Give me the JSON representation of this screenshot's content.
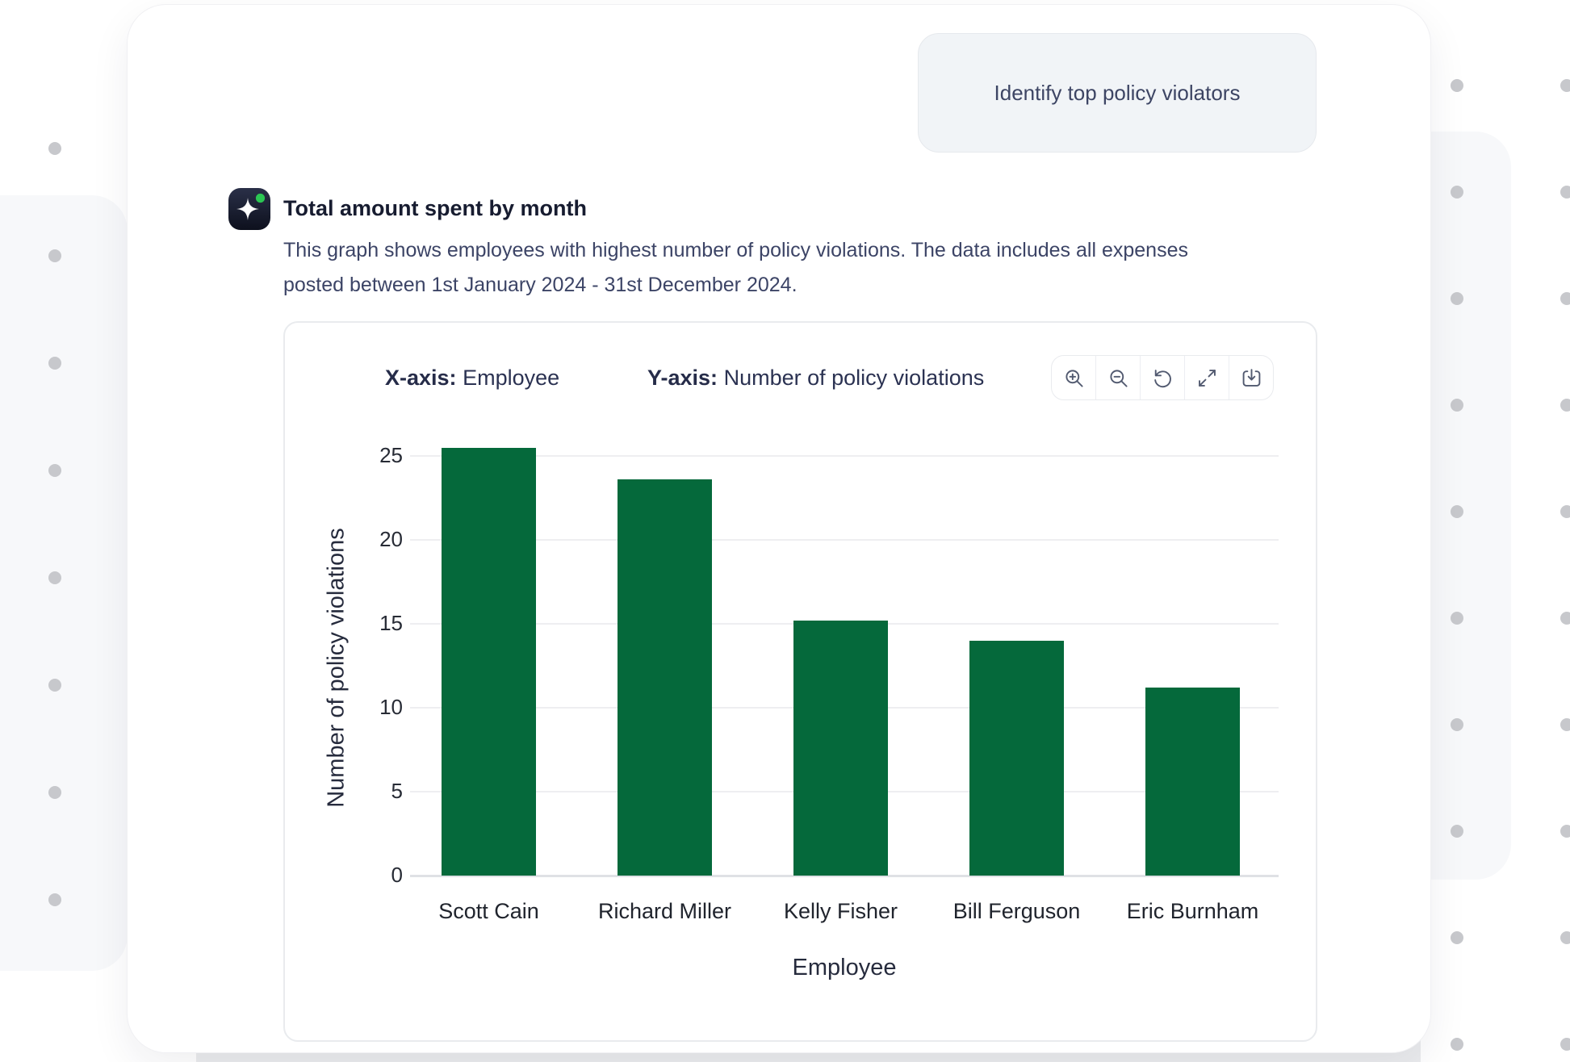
{
  "user_message": {
    "text": "Identify top policy violators"
  },
  "assistant": {
    "icon": "sparkle-icon",
    "title": "Total amount spent by month",
    "description": "This graph shows employees with highest number of policy violations. The data includes all expenses posted between 1st January 2024 - 31st December 2024."
  },
  "chart_card": {
    "x_axis_prefix": "X-axis:",
    "x_axis_value": "Employee",
    "y_axis_prefix": "Y-axis:",
    "y_axis_value": "Number of policy violations",
    "toolbar": [
      {
        "name": "zoom-in-icon"
      },
      {
        "name": "zoom-out-icon"
      },
      {
        "name": "reset-icon"
      },
      {
        "name": "expand-icon"
      },
      {
        "name": "download-icon"
      }
    ]
  },
  "chart_data": {
    "type": "bar",
    "categories": [
      "Scott Cain",
      "Richard Miller",
      "Kelly Fisher",
      "Bill Ferguson",
      "Eric Burnham"
    ],
    "values": [
      25.5,
      23.6,
      15.2,
      14,
      11.2
    ],
    "title": "",
    "xlabel": "Employee",
    "ylabel": "Number of policy violations",
    "ylim": [
      0,
      26
    ],
    "yticks": [
      0,
      5,
      10,
      15,
      20,
      25
    ],
    "bar_color": "#05693b",
    "grid": true,
    "legend": "none"
  },
  "colors": {
    "accent_green": "#05693b",
    "status_dot_green": "#2bc653",
    "bubble_bg": "#f1f4f7",
    "panel_bg": "#f7f8fa",
    "text_navy": "#2b3252"
  }
}
